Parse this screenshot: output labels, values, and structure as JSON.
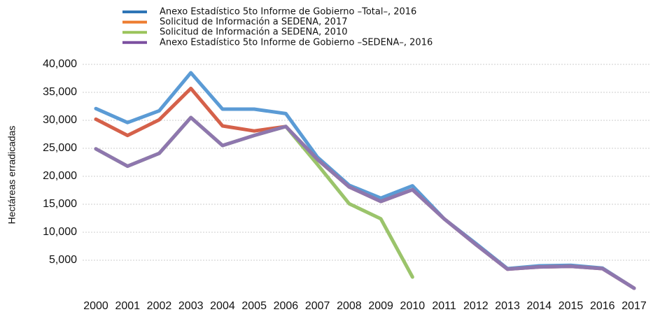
{
  "chart_data": {
    "type": "line",
    "y_label": "Hectáreas erradicadas",
    "categories": [
      "2000",
      "2001",
      "2002",
      "2003",
      "2004",
      "2005",
      "2006",
      "2007",
      "2008",
      "2009",
      "2010",
      "2011",
      "2012",
      "2013",
      "2014",
      "2015",
      "2016",
      "2017"
    ],
    "series": [
      {
        "name": "Anexo Estadístico 5to Informe de Gobierno –Total–, 2016",
        "color": "#5b9bd5",
        "values": [
          32100,
          29600,
          31700,
          38500,
          32000,
          32000,
          31200,
          23400,
          18400,
          16100,
          18300,
          12400,
          8000,
          3500,
          4000,
          4100,
          3600,
          0
        ]
      },
      {
        "name": "Solicitud de Información a SEDENA, 2017",
        "color": "#d5614a",
        "values": [
          30200,
          27300,
          30100,
          35700,
          29000,
          28100,
          28900,
          23000,
          18100,
          15500,
          17600,
          12400,
          7800,
          3400,
          3800,
          3900,
          3500,
          0
        ]
      },
      {
        "name": "Solicitud de Información a SEDENA, 2010",
        "color": "#9bc46b",
        "values": [
          24900,
          21800,
          24100,
          30500,
          25500,
          27300,
          28900,
          22100,
          15100,
          12400,
          2000,
          null,
          null,
          null,
          null,
          null,
          null,
          null
        ]
      },
      {
        "name": "Anexo Estadístico 5to Informe de Gobierno –SEDENA–, 2016",
        "color": "#8e77ae",
        "values": [
          24900,
          21800,
          24100,
          30500,
          25500,
          27300,
          28900,
          23000,
          18100,
          15500,
          17600,
          12400,
          7800,
          3400,
          3800,
          3900,
          3500,
          0
        ]
      }
    ],
    "legend_colors": [
      "#2e75b6",
      "#ed7d31",
      "#9bc45b",
      "#7b4fa0"
    ],
    "ylim": [
      -1000,
      41000
    ],
    "yticks": [
      {
        "value": 5000,
        "label": "5,000"
      },
      {
        "value": 10000,
        "label": "10,000"
      },
      {
        "value": 15000,
        "label": "15,000"
      },
      {
        "value": 20000,
        "label": "20,000"
      },
      {
        "value": 25000,
        "label": "25,000"
      },
      {
        "value": 30000,
        "label": "30,000"
      },
      {
        "value": 35000,
        "label": "35,000"
      },
      {
        "value": 40000,
        "label": "40,000"
      }
    ],
    "grid": true
  }
}
